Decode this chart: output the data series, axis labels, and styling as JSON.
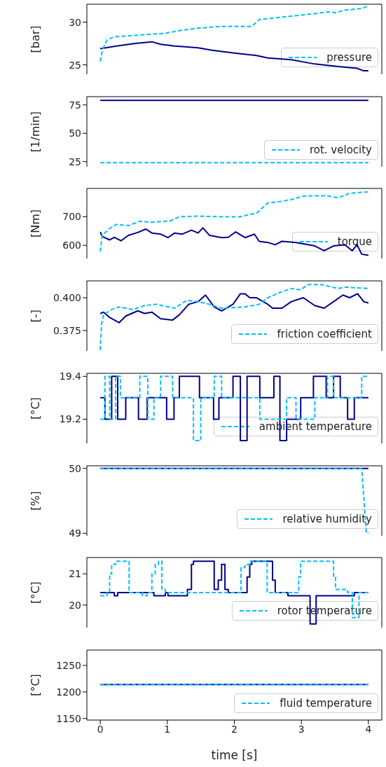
{
  "chart_data": [
    {
      "type": "line",
      "ylabel": "[bar]",
      "xlim": [
        -0.2,
        4.2
      ],
      "xticks": [
        0,
        1,
        2,
        3,
        4
      ],
      "ylim": [
        23.9,
        32.1
      ],
      "yticks": [
        25,
        30
      ],
      "tick_labels": "y",
      "legend": "bottom right",
      "series": [
        {
          "color": "#00008b",
          "line_style": "solid",
          "x": [
            0,
            0.24,
            0.52,
            0.77,
            0.9,
            1.11,
            1.46,
            1.67,
            1.98,
            2.33,
            2.5,
            2.85,
            3.2,
            3.55,
            3.83,
            3.93,
            4.0
          ],
          "values": [
            26.9,
            27.2,
            27.5,
            27.7,
            27.4,
            27.2,
            27.0,
            26.7,
            26.4,
            26.1,
            25.8,
            25.6,
            25.1,
            24.8,
            24.6,
            24.3,
            24.3
          ]
        },
        {
          "name": "pressure",
          "color": "#00bfff",
          "line_style": "dashed",
          "x": [
            0,
            0.03,
            0.1,
            0.21,
            0.45,
            0.77,
            0.97,
            1.18,
            1.46,
            1.81,
            2.26,
            2.37,
            2.85,
            3.2,
            3.41,
            3.51,
            3.65,
            3.9,
            4.0
          ],
          "values": [
            25.4,
            26.7,
            27.9,
            28.3,
            28.4,
            28.6,
            28.7,
            29.0,
            29.3,
            29.5,
            29.5,
            30.3,
            30.7,
            31.0,
            31.2,
            31.1,
            31.4,
            31.6,
            31.9
          ]
        }
      ]
    },
    {
      "type": "line",
      "ylabel": "[1/min]",
      "xlim": [
        -0.2,
        4.2
      ],
      "xticks": [
        0,
        1,
        2,
        3,
        4
      ],
      "ylim": [
        20.5,
        82.3
      ],
      "yticks": [
        25,
        50,
        75
      ],
      "tick_labels": "y",
      "legend": "bottom right",
      "series": [
        {
          "color": "#00008b",
          "line_style": "solid",
          "x": [
            0,
            4
          ],
          "values": [
            79,
            79
          ]
        },
        {
          "name": "rot. velocity",
          "color": "#00bfff",
          "line_style": "dashed",
          "x": [
            0,
            0.05,
            4
          ],
          "values": [
            24,
            24,
            24
          ]
        }
      ]
    },
    {
      "type": "line",
      "ylabel": "[Nm]",
      "xlim": [
        -0.2,
        4.2
      ],
      "xticks": [
        0,
        1,
        2,
        3,
        4
      ],
      "ylim": [
        554,
        799
      ],
      "yticks": [
        600,
        700
      ],
      "tick_labels": "y",
      "legend": "bottom right",
      "series": [
        {
          "color": "#00008b",
          "line_style": "solid",
          "x": [
            0,
            0.03,
            0.14,
            0.21,
            0.31,
            0.42,
            0.56,
            0.68,
            0.77,
            0.9,
            1.01,
            1.11,
            1.22,
            1.36,
            1.46,
            1.53,
            1.63,
            1.81,
            1.91,
            2.02,
            2.16,
            2.3,
            2.37,
            2.5,
            2.61,
            2.71,
            2.92,
            3.2,
            3.34,
            3.48,
            3.65,
            3.76,
            3.83,
            3.9,
            4.0
          ],
          "values": [
            647,
            631,
            619,
            628,
            616,
            635,
            645,
            657,
            643,
            639,
            627,
            643,
            639,
            653,
            643,
            661,
            635,
            627,
            628,
            647,
            627,
            639,
            614,
            610,
            602,
            614,
            610,
            598,
            581,
            598,
            602,
            581,
            602,
            569,
            565
          ]
        },
        {
          "name": "torque",
          "color": "#00bfff",
          "line_style": "dashed",
          "x": [
            0,
            0.03,
            0.14,
            0.24,
            0.42,
            0.59,
            0.77,
            1.04,
            1.18,
            1.46,
            1.81,
            2.09,
            2.23,
            2.33,
            2.5,
            2.71,
            2.85,
            3.03,
            3.37,
            3.55,
            3.72,
            4.0
          ],
          "values": [
            578,
            635,
            659,
            673,
            669,
            684,
            681,
            685,
            700,
            702,
            700,
            700,
            708,
            712,
            748,
            754,
            760,
            772,
            774,
            766,
            782,
            787
          ]
        }
      ]
    },
    {
      "type": "line",
      "ylabel": "[-]",
      "xlim": [
        -0.2,
        4.2
      ],
      "xticks": [
        0,
        1,
        2,
        3,
        4
      ],
      "ylim": [
        0.3595,
        0.4128
      ],
      "yticks": [
        {
          "value": 0.375,
          "label": "0.375"
        },
        {
          "value": 0.4,
          "label": "0.400"
        }
      ],
      "tick_labels": "y",
      "legend": "bottom right",
      "series": [
        {
          "color": "#00008b",
          "line_style": "solid",
          "x": [
            0,
            0.05,
            0.14,
            0.28,
            0.38,
            0.56,
            0.66,
            0.77,
            0.9,
            1.08,
            1.18,
            1.32,
            1.46,
            1.57,
            1.7,
            1.81,
            1.98,
            2.09,
            2.16,
            2.23,
            2.33,
            2.5,
            2.57,
            2.71,
            2.85,
            3.03,
            3.2,
            3.34,
            3.48,
            3.62,
            3.72,
            3.84,
            3.93,
            4.0
          ],
          "values": [
            0.388,
            0.389,
            0.385,
            0.381,
            0.386,
            0.39,
            0.388,
            0.389,
            0.384,
            0.383,
            0.387,
            0.395,
            0.397,
            0.402,
            0.393,
            0.39,
            0.395,
            0.403,
            0.403,
            0.4,
            0.4,
            0.395,
            0.392,
            0.392,
            0.397,
            0.4,
            0.394,
            0.392,
            0.397,
            0.402,
            0.4,
            0.403,
            0.397,
            0.396
          ]
        },
        {
          "name": "friction coefficient",
          "color": "#00bfff",
          "line_style": "dashed",
          "x": [
            0,
            0.02,
            0.05,
            0.17,
            0.28,
            0.49,
            0.66,
            0.83,
            1.11,
            1.29,
            1.46,
            1.63,
            1.81,
            2.16,
            2.37,
            2.5,
            2.68,
            2.85,
            2.99,
            3.1,
            3.3,
            3.55,
            3.65,
            4.0
          ],
          "values": [
            0.36,
            0.38,
            0.387,
            0.391,
            0.393,
            0.391,
            0.394,
            0.395,
            0.392,
            0.398,
            0.397,
            0.395,
            0.392,
            0.393,
            0.395,
            0.4,
            0.404,
            0.407,
            0.406,
            0.41,
            0.41,
            0.407,
            0.408,
            0.407
          ]
        }
      ]
    },
    {
      "type": "step",
      "ylabel": "[°C]",
      "xlim": [
        -0.2,
        4.2
      ],
      "xticks": [
        0,
        1,
        2,
        3,
        4
      ],
      "ylim": [
        19.087,
        19.414
      ],
      "yticks": [
        19.2,
        19.4
      ],
      "tick_labels": "y",
      "legend": "bottom right",
      "series": [
        {
          "color": "#00008b",
          "line_style": "solid",
          "x": [
            0,
            0.07,
            0.17,
            0.26,
            0.38,
            0.57,
            0.7,
            0.99,
            1.1,
            1.18,
            1.48,
            1.69,
            1.77,
            1.98,
            2.09,
            2.19,
            2.38,
            2.59,
            2.68,
            2.78,
            2.99,
            3.18,
            3.37,
            3.48,
            3.58,
            3.69,
            3.79,
            4.0
          ],
          "values": [
            19.3,
            19.2,
            19.4,
            19.2,
            19.3,
            19.2,
            19.3,
            19.2,
            19.3,
            19.4,
            19.3,
            19.2,
            19.3,
            19.4,
            19.1,
            19.4,
            19.3,
            19.4,
            19.1,
            19.2,
            19.3,
            19.4,
            19.3,
            19.4,
            19.3,
            19.2,
            19.3,
            19.3
          ]
        },
        {
          "name": "ambient temperature",
          "color": "#00bfff",
          "line_style": "dashed",
          "x": [
            0,
            0.07,
            0.14,
            0.23,
            0.3,
            0.59,
            0.71,
            0.8,
            0.9,
            1.08,
            1.39,
            1.5,
            1.7,
            1.81,
            2.38,
            2.78,
            2.92,
            3.2,
            3.39,
            3.48,
            3.9,
            4.0
          ],
          "values": [
            19.2,
            19.4,
            19.2,
            19.4,
            19.3,
            19.4,
            19.2,
            19.3,
            19.4,
            19.3,
            19.1,
            19.3,
            19.4,
            19.3,
            19.2,
            19.3,
            19.2,
            19.3,
            19.4,
            19.3,
            19.4,
            19.4
          ]
        }
      ]
    },
    {
      "type": "line",
      "ylabel": "[%]",
      "xlim": [
        -0.2,
        4.2
      ],
      "xticks": [
        0,
        1,
        2,
        3,
        4
      ],
      "ylim": [
        48.96,
        50.04
      ],
      "yticks": [
        49,
        50
      ],
      "tick_labels": "y",
      "legend": "bottom right",
      "series": [
        {
          "color": "#00008b",
          "line_style": "solid",
          "x": [
            0,
            4
          ],
          "values": [
            50,
            50
          ]
        },
        {
          "name": "relative humidity",
          "color": "#00bfff",
          "line_style": "dashed",
          "x": [
            0,
            3.9,
            3.97,
            4.0
          ],
          "values": [
            50,
            50,
            49,
            49
          ]
        }
      ]
    },
    {
      "type": "step",
      "ylabel": "[°C]",
      "xlim": [
        -0.2,
        4.2
      ],
      "xticks": [
        0,
        1,
        2,
        3,
        4
      ],
      "ylim": [
        19.28,
        21.52
      ],
      "yticks": [
        20,
        21
      ],
      "tick_labels": "y",
      "legend": "bottom right",
      "series": [
        {
          "color": "#00008b",
          "line_style": "solid",
          "x": [
            0,
            0.21,
            0.26,
            0.8,
            0.97,
            1.01,
            1.3,
            1.36,
            1.39,
            1.7,
            1.76,
            1.81,
            1.86,
            1.91,
            2.19,
            2.23,
            2.26,
            2.57,
            2.61,
            2.8,
            3.13,
            3.22,
            3.79,
            4.0
          ],
          "values": [
            20.4,
            20.3,
            20.4,
            20.3,
            20.4,
            20.3,
            20.5,
            21.3,
            21.4,
            20.5,
            20.8,
            21.3,
            20.5,
            20.4,
            20.9,
            21.3,
            21.4,
            20.8,
            20.4,
            20.3,
            19.4,
            20.3,
            20.4,
            20.4
          ]
        },
        {
          "name": "rotor temperature",
          "color": "#00bfff",
          "line_style": "dashed",
          "x": [
            0,
            0.1,
            0.14,
            0.17,
            0.23,
            0.43,
            0.63,
            0.7,
            0.77,
            0.82,
            0.87,
            0.92,
            0.97,
            2.1,
            2.16,
            2.23,
            2.49,
            2.96,
            2.99,
            3.48,
            3.51,
            3.69,
            3.76,
            3.86,
            4.0
          ],
          "values": [
            20.3,
            20.4,
            21.0,
            21.3,
            21.4,
            20.4,
            20.3,
            20.4,
            21.0,
            21.3,
            21.4,
            20.5,
            20.4,
            21.2,
            21.3,
            21.4,
            20.4,
            20.9,
            21.4,
            20.9,
            20.5,
            20.4,
            19.6,
            20.4,
            20.4
          ]
        }
      ]
    },
    {
      "type": "line",
      "ylabel": "[°C]",
      "xlabel": "time [s]",
      "xlim": [
        -0.2,
        4.2
      ],
      "xticks": [
        0,
        1,
        2,
        3,
        4
      ],
      "ylim": [
        1147,
        1279
      ],
      "yticks": [
        1150,
        1200,
        1250
      ],
      "legend": "bottom right",
      "series": [
        {
          "color": "#00008b",
          "line_style": "solid",
          "x": [
            0,
            4
          ],
          "values": [
            1214,
            1214
          ]
        },
        {
          "name": "fluid temperature",
          "color": "#00bfff",
          "line_style": "dashed",
          "x": [
            0,
            4
          ],
          "values": [
            1214,
            1214
          ]
        }
      ]
    }
  ]
}
